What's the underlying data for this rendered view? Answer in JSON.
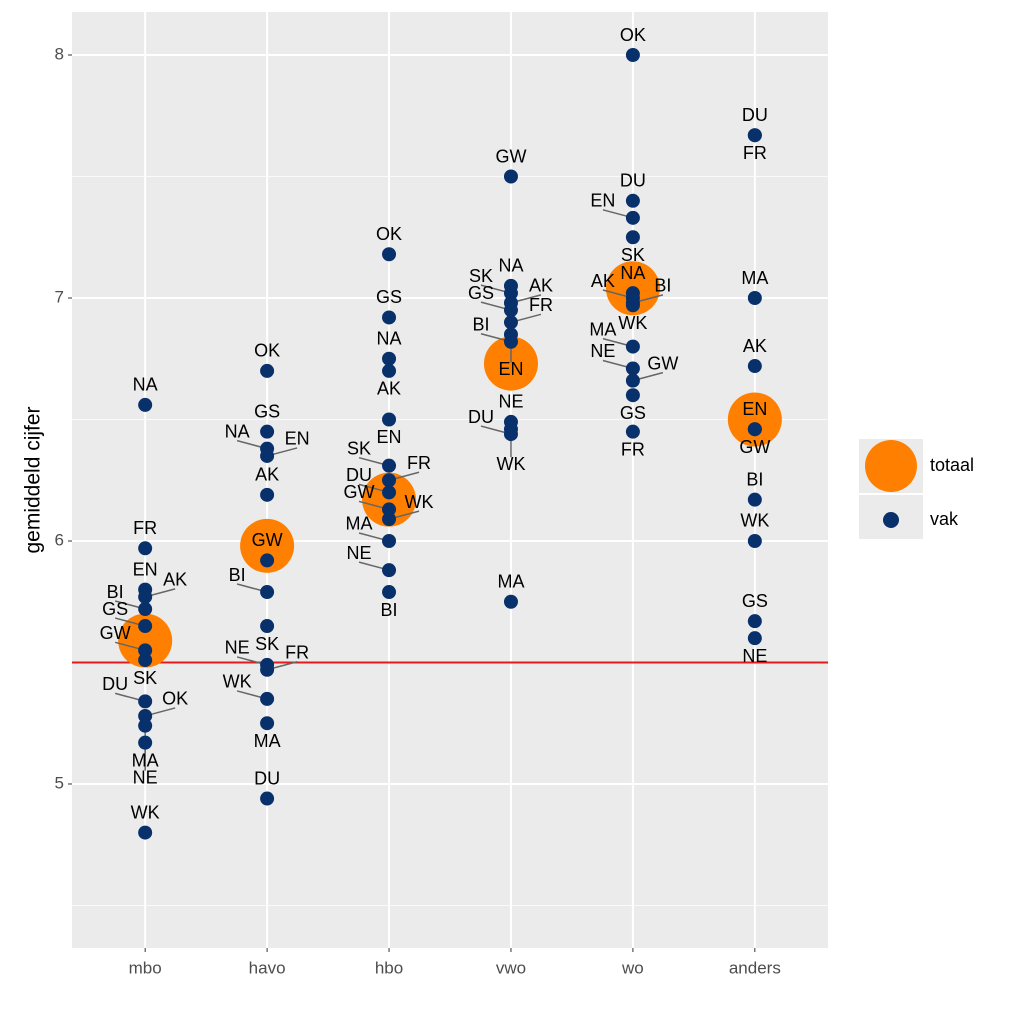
{
  "chart_data": {
    "type": "dotlabel",
    "y_label": "gemiddeld cijfer",
    "categories": [
      "mbo",
      "havo",
      "hbo",
      "vwo",
      "wo",
      "anders"
    ],
    "ylim": [
      4.325,
      8.177
    ],
    "yticks": [
      5,
      6,
      7,
      8
    ],
    "yminor": [
      4.5,
      5.5,
      6.5,
      7.5
    ],
    "grid": true,
    "hline": 5.5,
    "hline_color": "#e41a1c",
    "series": [
      {
        "name": "totaal",
        "color": "#ff7f00",
        "values": [
          5.59,
          5.98,
          6.17,
          6.73,
          7.04,
          6.5
        ]
      },
      {
        "name": "vak",
        "color": "#08306b",
        "x": [
          "mbo",
          "mbo",
          "mbo",
          "mbo",
          "mbo",
          "mbo",
          "mbo",
          "mbo",
          "mbo",
          "mbo",
          "mbo",
          "mbo",
          "mbo",
          "havo",
          "havo",
          "havo",
          "havo",
          "havo",
          "havo",
          "havo",
          "havo",
          "havo",
          "havo",
          "havo",
          "havo",
          "havo",
          "hbo",
          "hbo",
          "hbo",
          "hbo",
          "hbo",
          "hbo",
          "hbo",
          "hbo",
          "hbo",
          "hbo",
          "hbo",
          "hbo",
          "hbo",
          "vwo",
          "vwo",
          "vwo",
          "vwo",
          "vwo",
          "vwo",
          "vwo",
          "vwo",
          "vwo",
          "vwo",
          "vwo",
          "vwo",
          "wo",
          "wo",
          "wo",
          "wo",
          "wo",
          "wo",
          "wo",
          "wo",
          "wo",
          "wo",
          "wo",
          "wo",
          "wo",
          "anders",
          "anders",
          "anders",
          "anders",
          "anders",
          "anders",
          "anders",
          "anders",
          "anders",
          "anders"
        ],
        "labels": [
          "NA",
          "GS",
          "FR",
          "EN",
          "BI",
          "GW",
          "AK",
          "SK",
          "DU",
          "MA",
          "NE",
          "OK",
          "WK",
          "OK",
          "GS",
          "NA",
          "AK",
          "EN",
          "GW",
          "BI",
          "SK",
          "NE",
          "WK",
          "MA",
          "FR",
          "DU",
          "OK",
          "GS",
          "NA",
          "AK",
          "EN",
          "SK",
          "FR",
          "DU",
          "GW",
          "WK",
          "MA",
          "NE",
          "BI",
          "GW",
          "NA",
          "SK",
          "AK",
          "GS",
          "FR",
          "EN",
          "BI",
          "NE",
          "WK",
          "DU",
          "MA",
          "OK",
          "DU",
          "EN",
          "SK",
          "AK",
          "NA",
          "BI",
          "WK",
          "MA",
          "NE",
          "GW",
          "GS",
          "FR",
          "DU",
          "FR",
          "MA",
          "AK",
          "EN",
          "GW",
          "BI",
          "WK",
          "GS",
          "NE"
        ],
        "values": [
          6.56,
          5.65,
          5.97,
          5.8,
          5.72,
          5.55,
          5.77,
          5.51,
          5.34,
          5.24,
          5.17,
          5.28,
          4.8,
          6.7,
          6.45,
          6.38,
          6.19,
          6.35,
          5.92,
          5.79,
          5.65,
          5.49,
          5.35,
          5.25,
          5.47,
          4.94,
          7.18,
          6.92,
          6.75,
          6.7,
          6.5,
          6.31,
          6.25,
          6.2,
          6.13,
          6.09,
          6.0,
          5.88,
          5.79,
          7.5,
          7.05,
          7.02,
          6.98,
          6.95,
          6.9,
          6.85,
          6.82,
          6.49,
          6.46,
          6.44,
          5.75,
          8.0,
          7.4,
          7.33,
          7.25,
          7.0,
          7.02,
          6.98,
          6.97,
          6.8,
          6.71,
          6.66,
          6.6,
          6.45,
          7.67,
          7.67,
          7.0,
          6.72,
          6.46,
          6.46,
          6.17,
          6.0,
          5.67,
          5.6
        ]
      }
    ]
  }
}
